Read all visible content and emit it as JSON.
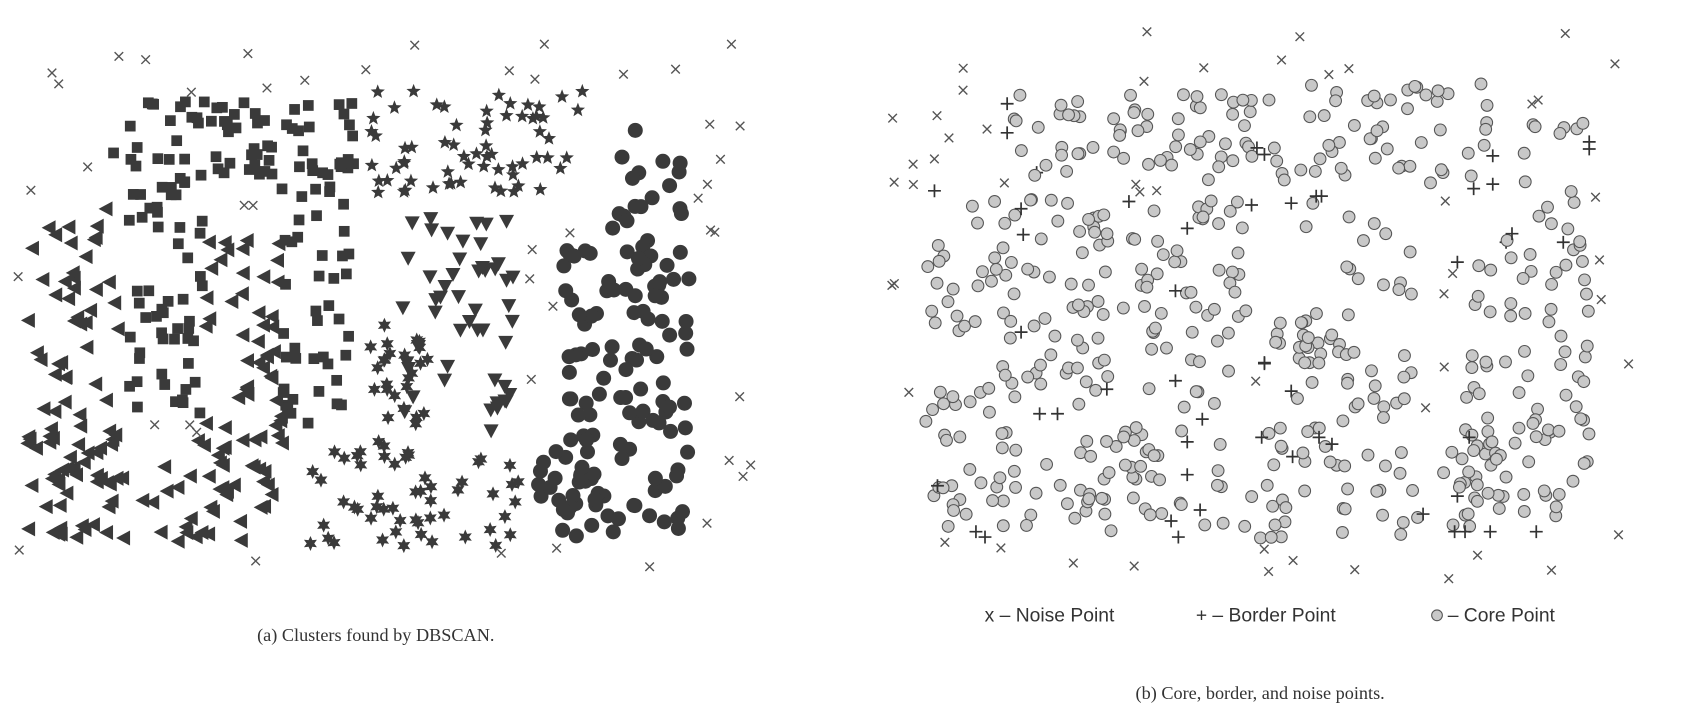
{
  "panels": [
    {
      "caption": "(a) Clusters found by DBSCAN."
    },
    {
      "caption": "(b) Core, border, and noise points.",
      "legend": [
        "x – Noise Point",
        "+ – Border Point",
        "– Core Point"
      ]
    }
  ]
}
